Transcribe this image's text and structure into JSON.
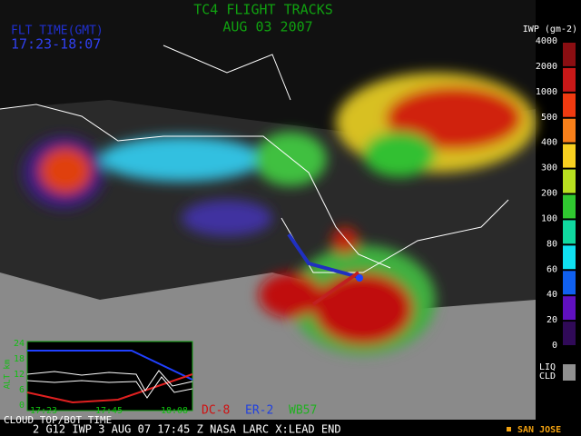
{
  "header": {
    "title": "TC4 FLIGHT TRACKS",
    "date": "AUG 03 2007",
    "flight_time_label": "FLT TIME(GMT)",
    "flight_time": "17:23-18:07"
  },
  "colorbar": {
    "title": "IWP (gm-2)",
    "levels": [
      {
        "label": "4000",
        "color": "#f7c8d8"
      },
      {
        "label": "2000",
        "color": "#8a0e12"
      },
      {
        "label": "1000",
        "color": "#c81818"
      },
      {
        "label": "500",
        "color": "#f03a10"
      },
      {
        "label": "400",
        "color": "#f8801a"
      },
      {
        "label": "300",
        "color": "#f8d020"
      },
      {
        "label": "200",
        "color": "#b8e020"
      },
      {
        "label": "100",
        "color": "#30c830"
      },
      {
        "label": "80",
        "color": "#10d8a0"
      },
      {
        "label": "60",
        "color": "#10e0f0"
      },
      {
        "label": "40",
        "color": "#1060f0"
      },
      {
        "label": "20",
        "color": "#6010c0"
      },
      {
        "label": "0",
        "color": "#300a58"
      }
    ],
    "liq_label": "LIQ",
    "cld_label": "CLD"
  },
  "inset": {
    "y_label": "ALT km",
    "yticks": [
      "24",
      "18",
      "12",
      "6",
      "0"
    ],
    "xticks": [
      "17:23",
      "17:45",
      "18:08"
    ],
    "x_label": "CLOUD TOP/BOT TIME"
  },
  "legend": [
    {
      "name": "DC-8",
      "color": "#d01010"
    },
    {
      "name": "ER-2",
      "color": "#2040e0"
    },
    {
      "name": "WB57",
      "color": "#20b020"
    }
  ],
  "footer": {
    "info": "2   G12 IWP   3 AUG 07 17:45 Z   NASA LARC   X:LEAD END",
    "location": "SAN JOSE"
  }
}
